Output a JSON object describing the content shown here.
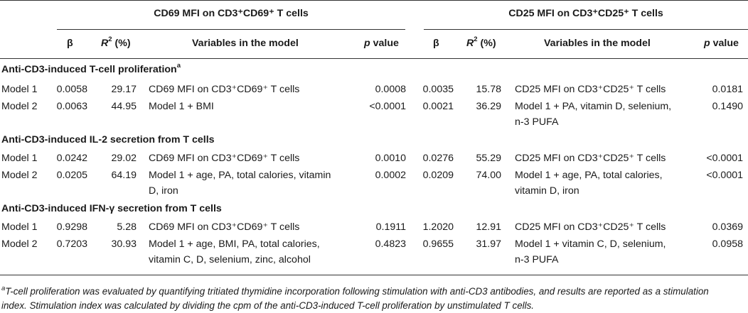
{
  "groups": {
    "cd69": "CD69 MFI on CD3⁺CD69⁺ T cells",
    "cd25": "CD25 MFI on CD3⁺CD25⁺ T cells"
  },
  "columns": {
    "beta": "β",
    "r2_pre": "R",
    "r2_sup": "2",
    "r2_post": " (%)",
    "vars": "Variables in the model",
    "p_pre": "p",
    "p_post": " value"
  },
  "sections": [
    {
      "title": "Anti-CD3-induced T-cell proliferation",
      "title_sup": "a",
      "rows": [
        {
          "model": "Model 1",
          "b1": "0.0058",
          "r1": "29.17",
          "v1": [
            "CD69 MFI on CD3⁺CD69⁺ T cells"
          ],
          "p1": "0.0008",
          "b2": "0.0035",
          "r2": "15.78",
          "v2": [
            "CD25 MFI on CD3⁺CD25⁺ T cells"
          ],
          "p2": "0.0181"
        },
        {
          "model": "Model 2",
          "b1": "0.0063",
          "r1": "44.95",
          "v1": [
            "Model 1 + BMI"
          ],
          "p1": "<0.0001",
          "b2": "0.0021",
          "r2": "36.29",
          "v2": [
            "Model 1 + PA, vitamin D, selenium,",
            "n-3 PUFA"
          ],
          "p2": "0.1490"
        }
      ]
    },
    {
      "title": "Anti-CD3-induced IL-2 secretion from T cells",
      "title_sup": "",
      "rows": [
        {
          "model": "Model 1",
          "b1": "0.0242",
          "r1": "29.02",
          "v1": [
            "CD69 MFI on CD3⁺CD69⁺ T cells"
          ],
          "p1": "0.0010",
          "b2": "0.0276",
          "r2": "55.29",
          "v2": [
            "CD25 MFI on CD3⁺CD25⁺ T cells"
          ],
          "p2": "<0.0001"
        },
        {
          "model": "Model 2",
          "b1": "0.0205",
          "r1": "64.19",
          "v1": [
            "Model 1 + age, PA, total calories, vitamin",
            "D, iron"
          ],
          "p1": "0.0002",
          "b2": "0.0209",
          "r2": "74.00",
          "v2": [
            "Model 1 + age, PA, total calories,",
            "vitamin D, iron"
          ],
          "p2": "<0.0001"
        }
      ]
    },
    {
      "title": "Anti-CD3-induced IFN-γ secretion from T cells",
      "title_sup": "",
      "rows": [
        {
          "model": "Model 1",
          "b1": "0.9298",
          "r1": "5.28",
          "v1": [
            "CD69 MFI on CD3⁺CD69⁺ T cells"
          ],
          "p1": "0.1911",
          "b2": "1.2020",
          "r2": "12.91",
          "v2": [
            "CD25 MFI on CD3⁺CD25⁺ T cells"
          ],
          "p2": "0.0369"
        },
        {
          "model": "Model 2",
          "b1": "0.7203",
          "r1": "30.93",
          "v1": [
            "Model 1 + age, BMI, PA, total calories,",
            "vitamin C, D, selenium, zinc, alcohol"
          ],
          "p1": "0.4823",
          "b2": "0.9655",
          "r2": "31.97",
          "v2": [
            "Model 1 + vitamin C, D, selenium,",
            "n-3 PUFA"
          ],
          "p2": "0.0958"
        }
      ]
    }
  ],
  "footnote": {
    "marker": "a",
    "line1": "T-cell proliferation was evaluated by quantifying tritiated thymidine incorporation following stimulation with anti-CD3 antibodies, and results are reported as a stimulation",
    "line2": "index. Stimulation index was calculated by dividing the cpm of the anti-CD3-induced T-cell proliferation by unstimulated T cells."
  }
}
